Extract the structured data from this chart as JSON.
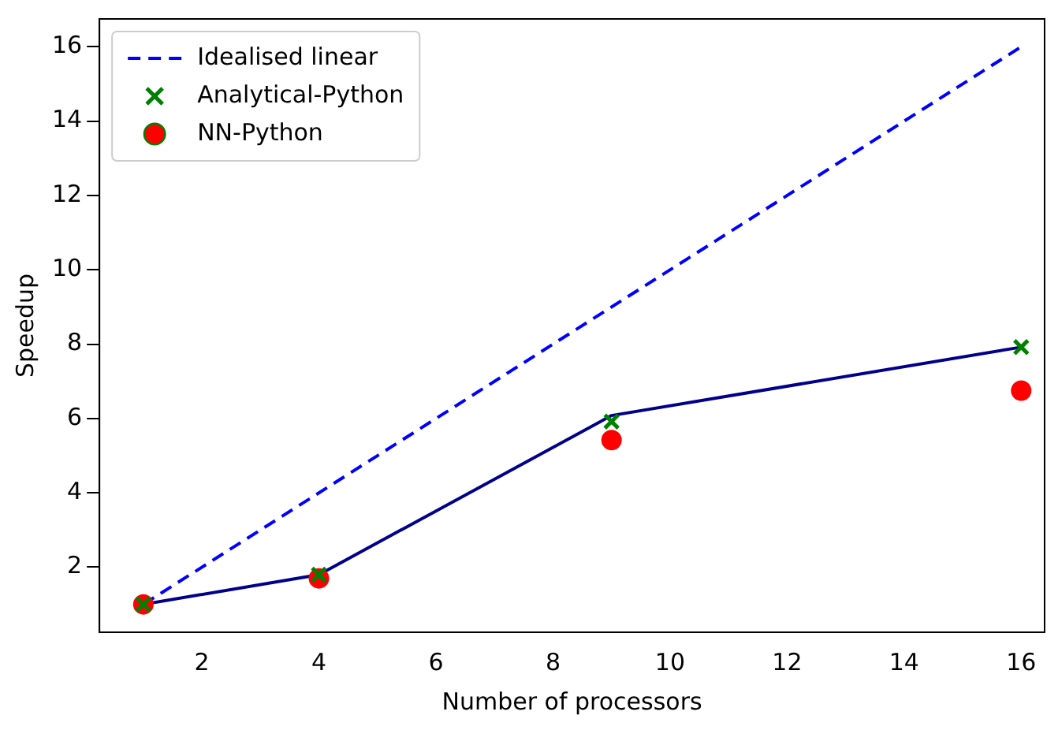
{
  "chart_data": {
    "type": "line",
    "xlabel": "Number of processors",
    "ylabel": "Speedup",
    "x": [
      1,
      4,
      9,
      16
    ],
    "xlim": [
      0.25,
      16.4
    ],
    "ylim": [
      0.25,
      16.75
    ],
    "xticks": [
      2,
      4,
      6,
      8,
      10,
      12,
      14,
      16
    ],
    "yticks": [
      2,
      4,
      6,
      8,
      10,
      12,
      14,
      16
    ],
    "grid": false,
    "legend": "top left",
    "series": [
      {
        "color": "#00008b",
        "values": [
          1,
          1.8,
          6.08,
          7.92
        ],
        "line_style": "solid",
        "marker": "none"
      },
      {
        "name": "Idealised linear",
        "color": "#0000ff",
        "x": [
          1,
          16
        ],
        "values": [
          1,
          16
        ],
        "line_style": "dashed",
        "marker": "none"
      },
      {
        "type": "scatter",
        "name": "Analytical-Python",
        "color": "#008000",
        "values": [
          1,
          1.8,
          5.92,
          7.92
        ],
        "marker": "cross"
      },
      {
        "type": "scatter",
        "name": "NN-Python",
        "color": "#ff0000",
        "values": [
          1,
          1.7,
          5.42,
          6.75
        ],
        "marker": "circle"
      }
    ]
  }
}
